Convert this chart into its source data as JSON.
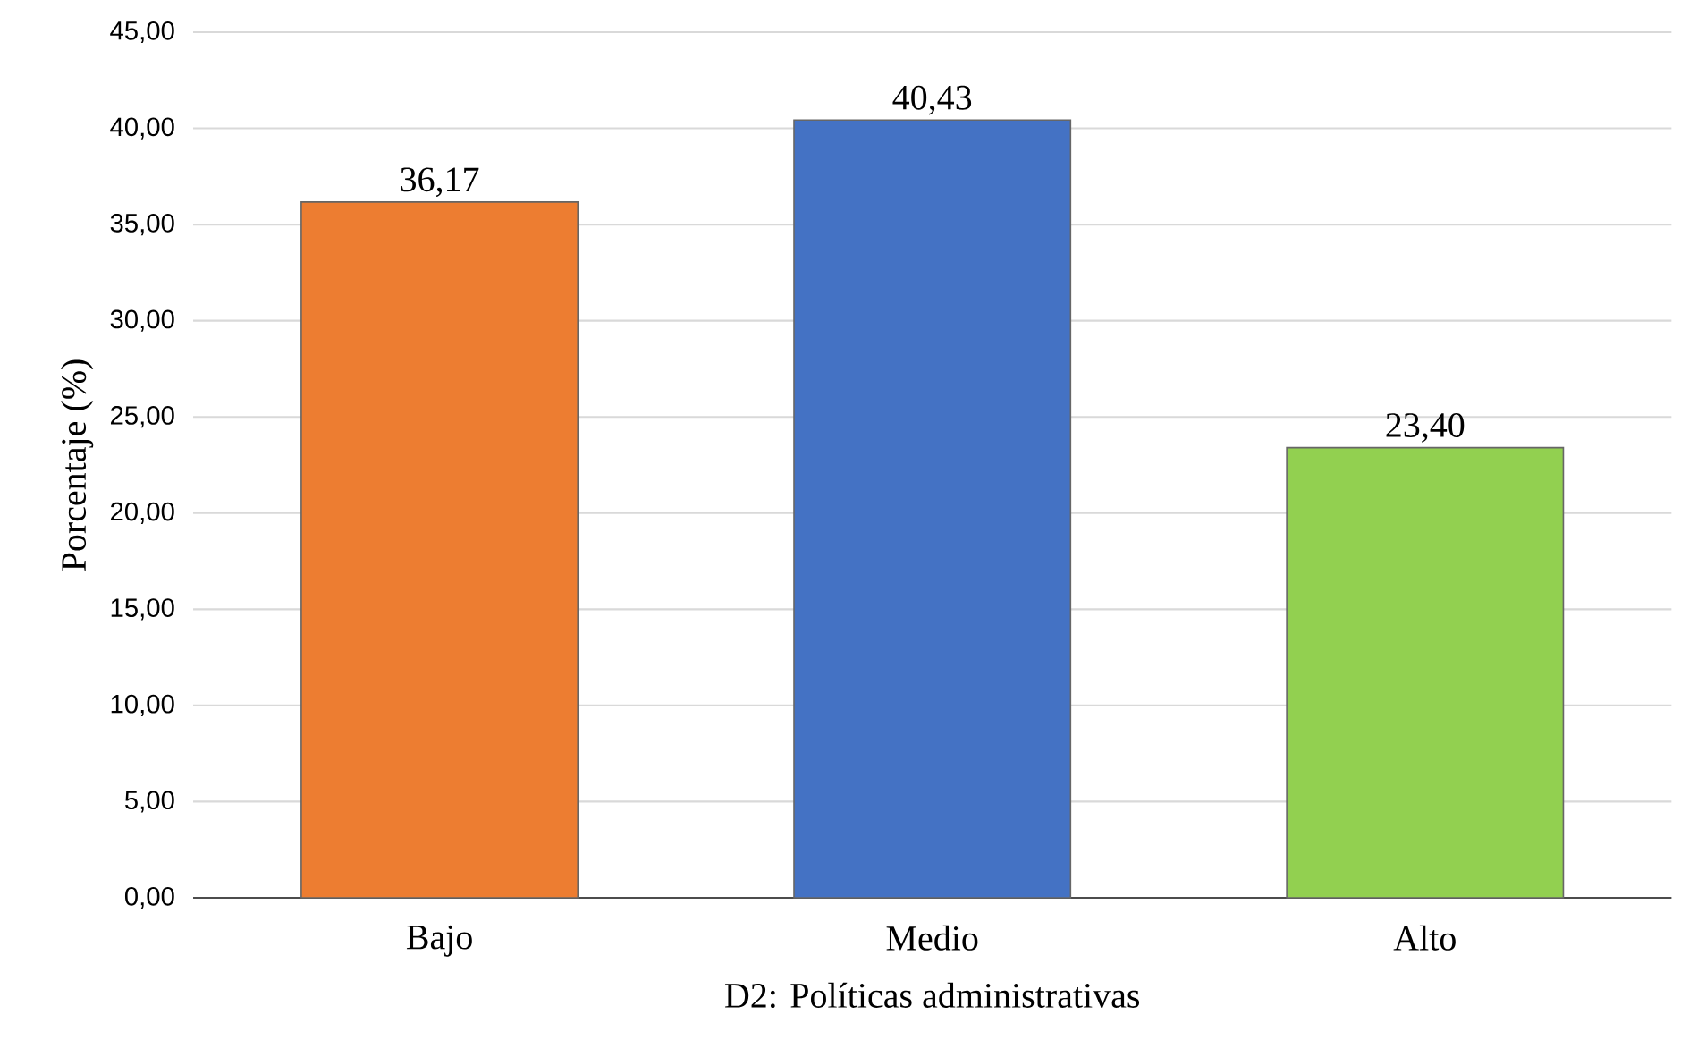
{
  "chart_data": {
    "type": "bar",
    "xlabel": "D2: Políticas administrativas",
    "ylabel": "Porcentaje (%)",
    "categories": [
      "Bajo",
      "Medio",
      "Alto"
    ],
    "values": [
      36.17,
      40.43,
      23.4
    ],
    "value_labels": [
      "36,17",
      "40,43",
      "23,40"
    ],
    "colors": [
      "#ed7d31",
      "#4472c4",
      "#92d050"
    ],
    "ylim": [
      0,
      45
    ],
    "yticks": [
      {
        "value": 0,
        "label": "0,00"
      },
      {
        "value": 5,
        "label": "5,00"
      },
      {
        "value": 10,
        "label": "10,00"
      },
      {
        "value": 15,
        "label": "15,00"
      },
      {
        "value": 20,
        "label": "20,00"
      },
      {
        "value": 25,
        "label": "25,00"
      },
      {
        "value": 30,
        "label": "30,00"
      },
      {
        "value": 35,
        "label": "35,00"
      },
      {
        "value": 40,
        "label": "40,00"
      },
      {
        "value": 45,
        "label": "45,00"
      }
    ],
    "grid": "y"
  }
}
